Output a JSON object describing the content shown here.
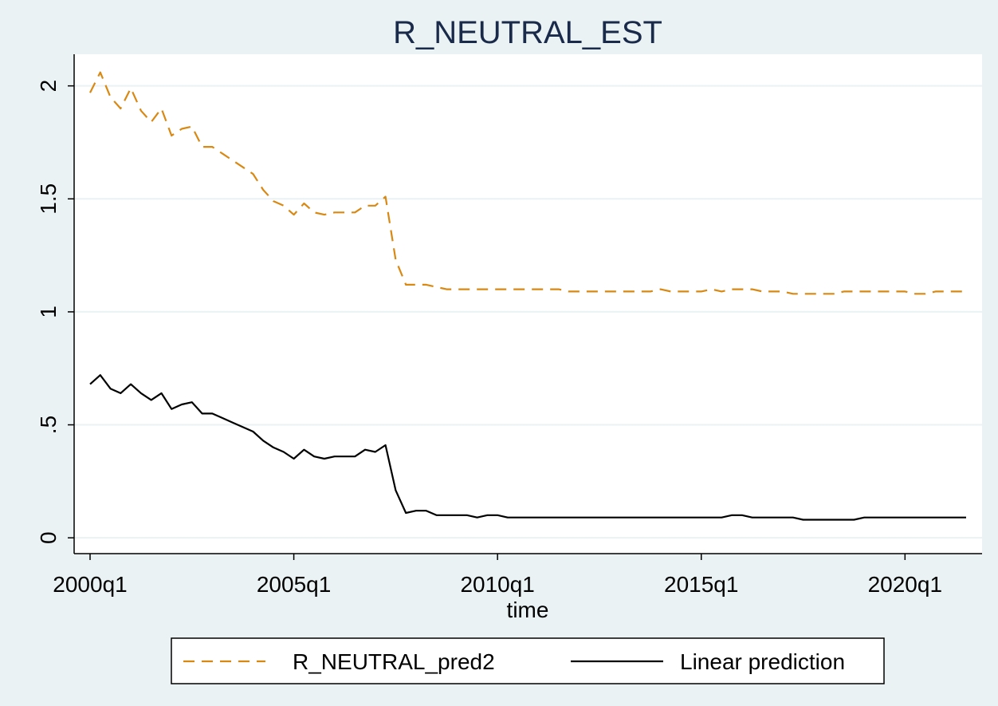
{
  "colors": {
    "outer_background": "#eaf2f3",
    "plot_background": "#ffffff",
    "gridline": "#eaf2f3",
    "title": "#1a2a4a",
    "series_pred2": "#d98812",
    "series_linear": "#000000"
  },
  "chart_data": {
    "type": "line",
    "title": "R_NEUTRAL_EST",
    "xlabel": "time",
    "ylabel": "",
    "x_unit": "quarter",
    "x_ticks": [
      "2000q1",
      "2005q1",
      "2010q1",
      "2015q1",
      "2020q1"
    ],
    "x_tick_values": [
      "2000q1",
      "2005q1",
      "2010q1",
      "2015q1",
      "2020q1"
    ],
    "xlim": [
      "2000q1",
      "2021q3"
    ],
    "y_ticks": [
      "0",
      ".5",
      "1",
      "1.5",
      "2"
    ],
    "y_tick_values": [
      0,
      0.5,
      1,
      1.5,
      2
    ],
    "ylim": [
      -0.07,
      2.14
    ],
    "grid": true,
    "legend_position": "bottom",
    "x": [
      "2000q1",
      "2000q2",
      "2000q3",
      "2000q4",
      "2001q1",
      "2001q2",
      "2001q3",
      "2001q4",
      "2002q1",
      "2002q2",
      "2002q3",
      "2002q4",
      "2003q1",
      "2003q2",
      "2003q3",
      "2003q4",
      "2004q1",
      "2004q2",
      "2004q3",
      "2004q4",
      "2005q1",
      "2005q2",
      "2005q3",
      "2005q4",
      "2006q1",
      "2006q2",
      "2006q3",
      "2006q4",
      "2007q1",
      "2007q2",
      "2007q3",
      "2007q4",
      "2008q1",
      "2008q2",
      "2008q3",
      "2008q4",
      "2009q1",
      "2009q2",
      "2009q3",
      "2009q4",
      "2010q1",
      "2010q2",
      "2010q3",
      "2010q4",
      "2011q1",
      "2011q2",
      "2011q3",
      "2011q4",
      "2012q1",
      "2012q2",
      "2012q3",
      "2012q4",
      "2013q1",
      "2013q2",
      "2013q3",
      "2013q4",
      "2014q1",
      "2014q2",
      "2014q3",
      "2014q4",
      "2015q1",
      "2015q2",
      "2015q3",
      "2015q4",
      "2016q1",
      "2016q2",
      "2016q3",
      "2016q4",
      "2017q1",
      "2017q2",
      "2017q3",
      "2017q4",
      "2018q1",
      "2018q2",
      "2018q3",
      "2018q4",
      "2019q1",
      "2019q2",
      "2019q3",
      "2019q4",
      "2020q1",
      "2020q2",
      "2020q3",
      "2020q4",
      "2021q1",
      "2021q2",
      "2021q3"
    ],
    "series": [
      {
        "name": "R_NEUTRAL_pred2",
        "color": "#d98812",
        "dash": "dashed",
        "values": [
          1.97,
          2.06,
          1.95,
          1.9,
          1.99,
          1.89,
          1.84,
          1.9,
          1.78,
          1.81,
          1.82,
          1.73,
          1.73,
          1.7,
          1.67,
          1.64,
          1.61,
          1.54,
          1.49,
          1.47,
          1.43,
          1.48,
          1.44,
          1.43,
          1.44,
          1.44,
          1.44,
          1.47,
          1.47,
          1.51,
          1.23,
          1.12,
          1.12,
          1.12,
          1.11,
          1.1,
          1.1,
          1.1,
          1.1,
          1.1,
          1.1,
          1.1,
          1.1,
          1.1,
          1.1,
          1.1,
          1.1,
          1.09,
          1.09,
          1.09,
          1.09,
          1.09,
          1.09,
          1.09,
          1.09,
          1.09,
          1.1,
          1.09,
          1.09,
          1.09,
          1.09,
          1.1,
          1.09,
          1.1,
          1.1,
          1.1,
          1.09,
          1.09,
          1.09,
          1.08,
          1.08,
          1.08,
          1.08,
          1.08,
          1.09,
          1.09,
          1.09,
          1.09,
          1.09,
          1.09,
          1.09,
          1.08,
          1.08,
          1.09,
          1.09,
          1.09,
          1.09
        ]
      },
      {
        "name": "Linear prediction",
        "color": "#000000",
        "dash": "solid",
        "values": [
          0.68,
          0.72,
          0.66,
          0.64,
          0.68,
          0.64,
          0.61,
          0.64,
          0.57,
          0.59,
          0.6,
          0.55,
          0.55,
          0.53,
          0.51,
          0.49,
          0.47,
          0.43,
          0.4,
          0.38,
          0.35,
          0.39,
          0.36,
          0.35,
          0.36,
          0.36,
          0.36,
          0.39,
          0.38,
          0.41,
          0.21,
          0.11,
          0.12,
          0.12,
          0.1,
          0.1,
          0.1,
          0.1,
          0.09,
          0.1,
          0.1,
          0.09,
          0.09,
          0.09,
          0.09,
          0.09,
          0.09,
          0.09,
          0.09,
          0.09,
          0.09,
          0.09,
          0.09,
          0.09,
          0.09,
          0.09,
          0.09,
          0.09,
          0.09,
          0.09,
          0.09,
          0.09,
          0.09,
          0.1,
          0.1,
          0.09,
          0.09,
          0.09,
          0.09,
          0.09,
          0.08,
          0.08,
          0.08,
          0.08,
          0.08,
          0.08,
          0.09,
          0.09,
          0.09,
          0.09,
          0.09,
          0.09,
          0.09,
          0.09,
          0.09,
          0.09,
          0.09
        ]
      }
    ]
  }
}
